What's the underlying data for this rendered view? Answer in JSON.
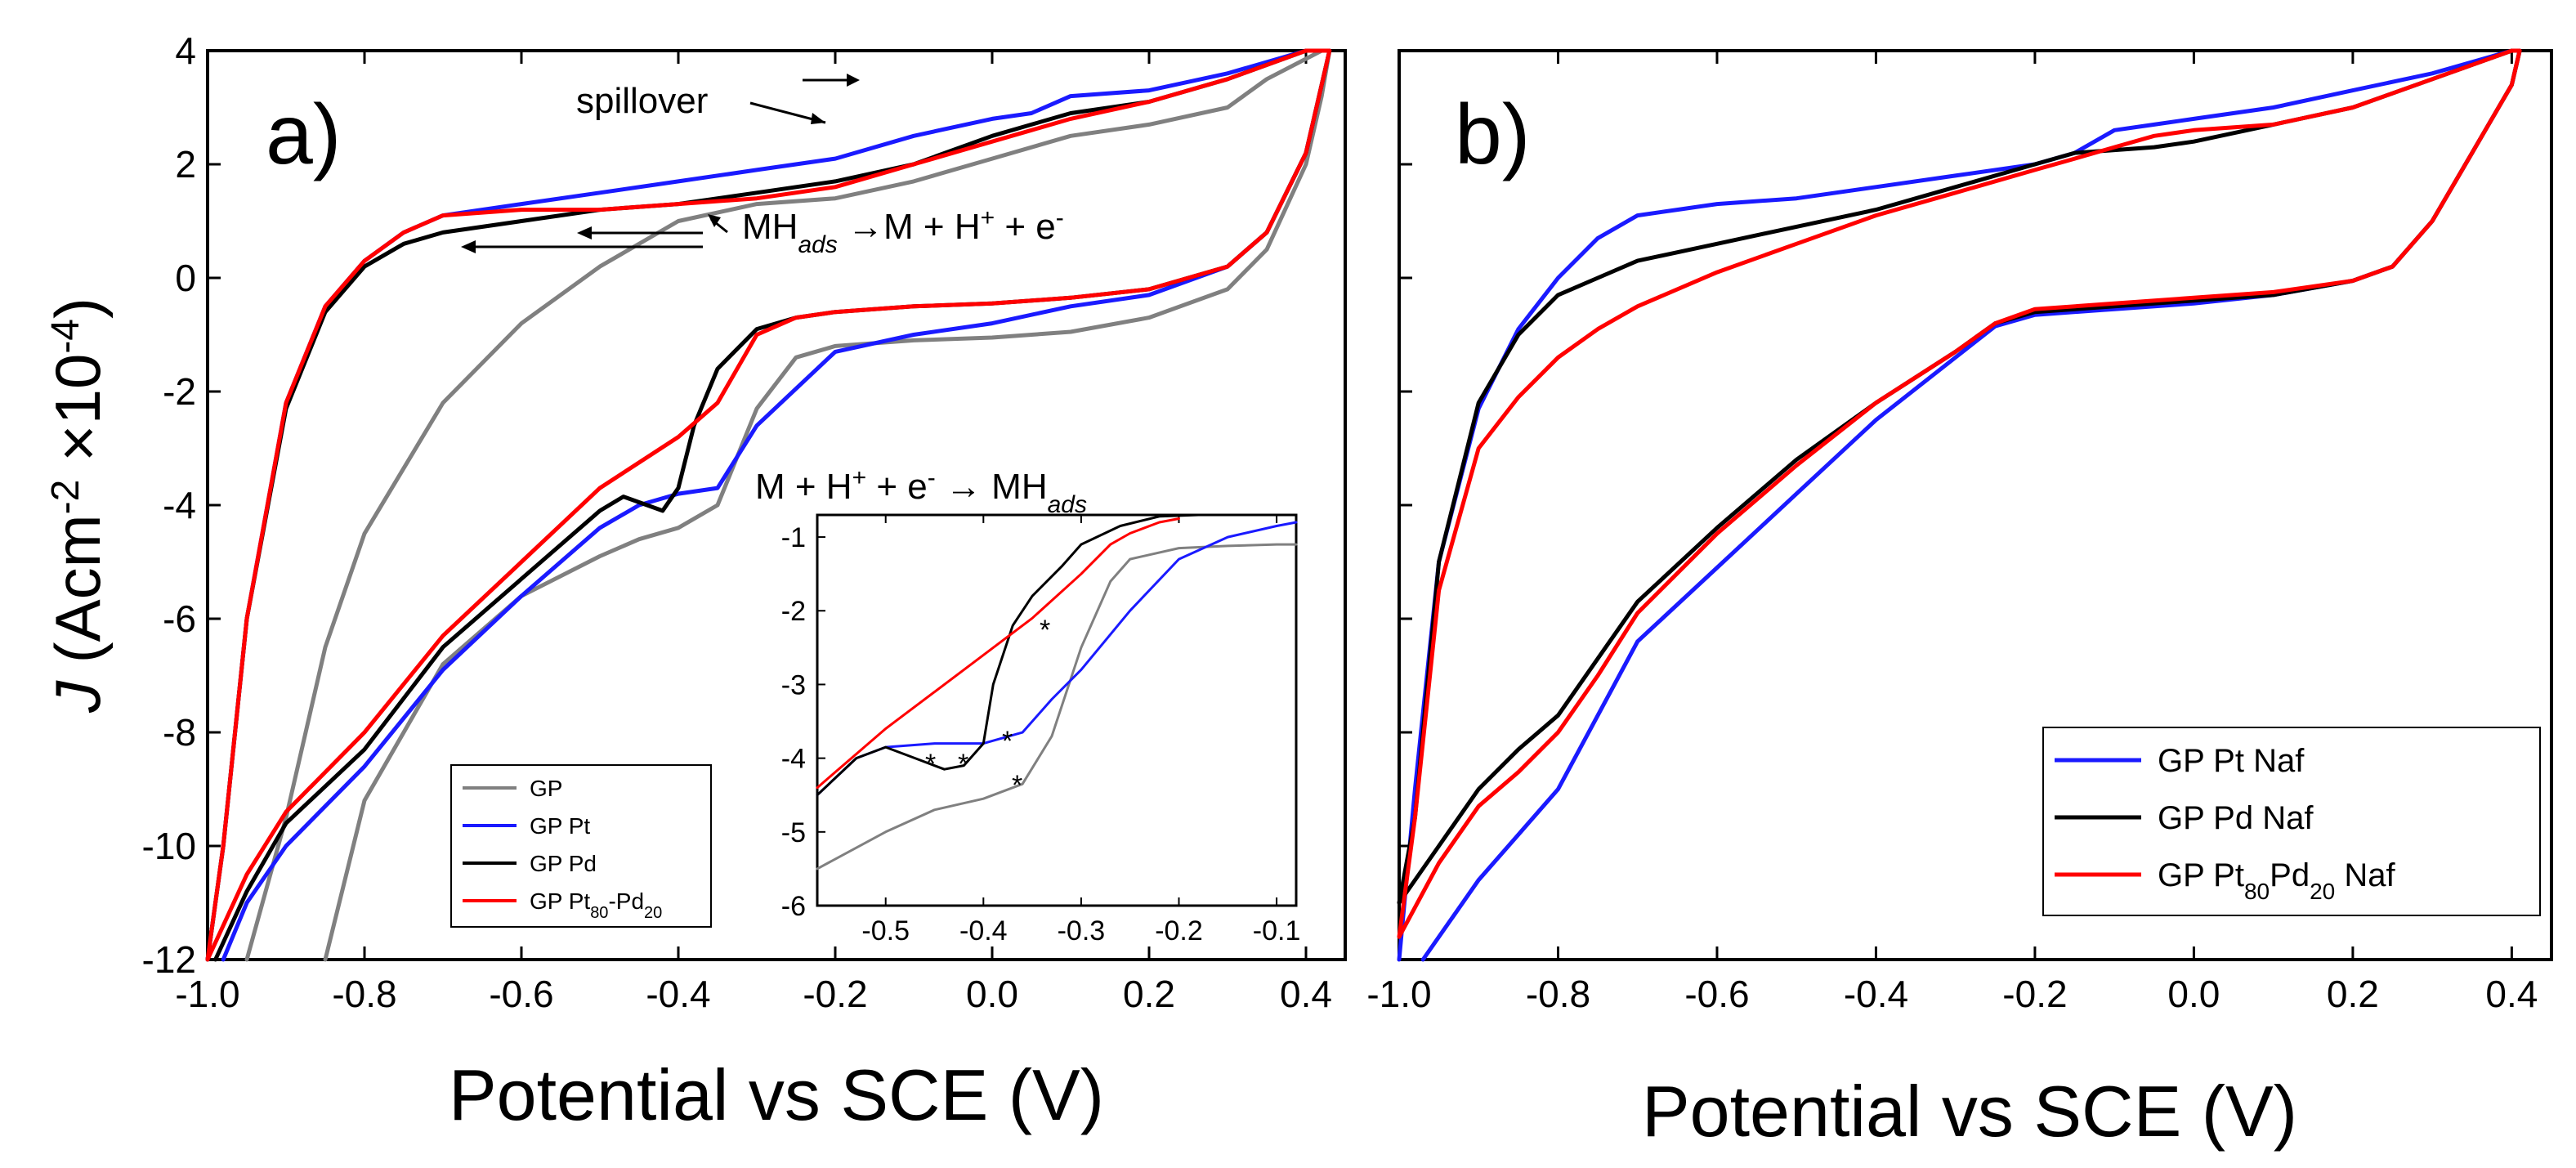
{
  "chart_data": [
    {
      "type": "line",
      "panel_label": "a)",
      "xlabel": "Potential vs SCE (V)",
      "ylabel": {
        "italic": "J",
        "text": " (Acm",
        "sup1": "-2",
        "mid": " ×10",
        "sup2": "-4",
        "end": ")"
      },
      "xlim": [
        -1.0,
        0.45
      ],
      "ylim": [
        -12,
        4
      ],
      "xticks": [
        "-1.0",
        "-0.8",
        "-0.6",
        "-0.4",
        "-0.2",
        "0.0",
        "0.2",
        "0.4"
      ],
      "yticks": [
        "4",
        "2",
        "0",
        "-2",
        "-4",
        "-6",
        "-8",
        "-10",
        "-12"
      ],
      "legend": [
        {
          "name": "GP",
          "color": "#808080"
        },
        {
          "name": "GP Pt",
          "color": "#1a1aff"
        },
        {
          "name": "GP Pd",
          "color": "#000000"
        },
        {
          "name": "GP Pt",
          "sub1": "80",
          "mid": "-Pd",
          "sub2": "20",
          "color": "#ff0000"
        }
      ],
      "annotations": {
        "spillover": "spillover",
        "oxidation": {
          "a": "MH",
          "sub": "ads",
          "b": " →M + H",
          "sup": "+",
          "c": " + e",
          "sup2": "-"
        },
        "reduction": {
          "a": "M + H",
          "sup": "+",
          "b": " + e",
          "sup2": "-",
          "c": " → MH",
          "sub": "ads"
        }
      },
      "series": [
        {
          "name": "GP",
          "color": "#808080",
          "x": [
            -0.85,
            -0.8,
            -0.7,
            -0.6,
            -0.5,
            -0.45,
            -0.4,
            -0.35,
            -0.3,
            -0.25,
            -0.2,
            -0.1,
            0.0,
            0.1,
            0.2,
            0.3,
            0.35,
            0.4,
            0.42,
            0.43,
            0.42,
            0.35,
            0.3,
            0.2,
            0.1,
            0.0,
            -0.1,
            -0.2,
            -0.3,
            -0.4,
            -0.5,
            -0.6,
            -0.7,
            -0.8,
            -0.85,
            -0.9,
            -0.95
          ],
          "y": [
            -12,
            -9.2,
            -6.8,
            -5.6,
            -4.9,
            -4.6,
            -4.4,
            -4.0,
            -2.3,
            -1.4,
            -1.2,
            -1.1,
            -1.05,
            -0.95,
            -0.7,
            -0.2,
            0.5,
            2.0,
            3.2,
            4.0,
            4.0,
            3.5,
            3.0,
            2.7,
            2.5,
            2.1,
            1.7,
            1.4,
            1.3,
            1.0,
            0.2,
            -0.8,
            -2.2,
            -4.5,
            -6.5,
            -9.5,
            -12
          ]
        },
        {
          "name": "GP Pt",
          "color": "#1a1aff",
          "x": [
            -0.98,
            -0.95,
            -0.9,
            -0.8,
            -0.7,
            -0.6,
            -0.5,
            -0.45,
            -0.4,
            -0.35,
            -0.3,
            -0.2,
            -0.1,
            0.0,
            0.1,
            0.2,
            0.3,
            0.35,
            0.4,
            0.42,
            0.43,
            0.4,
            0.3,
            0.2,
            0.1,
            0.05,
            0.0,
            -0.1,
            -0.2,
            -0.3,
            -0.4,
            -0.5,
            -0.6,
            -0.7,
            -0.75,
            -0.8,
            -0.85,
            -0.9,
            -0.95,
            -0.98,
            -1.0
          ],
          "y": [
            -12,
            -11,
            -10,
            -8.6,
            -6.9,
            -5.6,
            -4.4,
            -4.0,
            -3.8,
            -3.7,
            -2.6,
            -1.3,
            -1.0,
            -0.8,
            -0.5,
            -0.3,
            0.2,
            0.8,
            2.2,
            3.4,
            4.0,
            4.0,
            3.6,
            3.3,
            3.2,
            2.9,
            2.8,
            2.5,
            2.1,
            1.9,
            1.7,
            1.5,
            1.3,
            1.1,
            0.8,
            0.3,
            -0.5,
            -2.2,
            -6.0,
            -10.0,
            -12
          ]
        },
        {
          "name": "GP Pd",
          "color": "#000000",
          "x": [
            -0.99,
            -0.95,
            -0.9,
            -0.8,
            -0.7,
            -0.6,
            -0.5,
            -0.47,
            -0.45,
            -0.42,
            -0.4,
            -0.38,
            -0.35,
            -0.3,
            -0.25,
            -0.2,
            -0.1,
            0.0,
            0.1,
            0.2,
            0.3,
            0.35,
            0.4,
            0.42,
            0.43,
            0.4,
            0.3,
            0.2,
            0.1,
            0.05,
            0.0,
            -0.1,
            -0.2,
            -0.3,
            -0.4,
            -0.5,
            -0.6,
            -0.7,
            -0.75,
            -0.8,
            -0.85,
            -0.9,
            -0.95,
            -0.98,
            -1.0
          ],
          "y": [
            -12,
            -10.8,
            -9.6,
            -8.3,
            -6.5,
            -5.3,
            -4.1,
            -3.85,
            -3.95,
            -4.1,
            -3.7,
            -2.6,
            -1.6,
            -0.9,
            -0.7,
            -0.6,
            -0.5,
            -0.45,
            -0.35,
            -0.2,
            0.2,
            0.8,
            2.2,
            3.4,
            4.0,
            4.0,
            3.5,
            3.1,
            2.9,
            2.7,
            2.5,
            2.0,
            1.7,
            1.5,
            1.3,
            1.2,
            1.0,
            0.8,
            0.6,
            0.2,
            -0.6,
            -2.3,
            -6.0,
            -10.0,
            -12
          ]
        },
        {
          "name": "GP Pt80-Pd20",
          "color": "#ff0000",
          "x": [
            -1.0,
            -0.95,
            -0.9,
            -0.8,
            -0.7,
            -0.6,
            -0.5,
            -0.4,
            -0.35,
            -0.3,
            -0.25,
            -0.2,
            -0.1,
            0.0,
            0.1,
            0.2,
            0.3,
            0.35,
            0.4,
            0.42,
            0.43,
            0.4,
            0.3,
            0.2,
            0.1,
            0.05,
            0.0,
            -0.1,
            -0.2,
            -0.3,
            -0.4,
            -0.5,
            -0.6,
            -0.7,
            -0.75,
            -0.8,
            -0.85,
            -0.9,
            -0.95,
            -0.98,
            -1.0
          ],
          "y": [
            -12,
            -10.5,
            -9.4,
            -8.0,
            -6.3,
            -5.0,
            -3.7,
            -2.8,
            -2.2,
            -1.0,
            -0.7,
            -0.6,
            -0.5,
            -0.45,
            -0.35,
            -0.2,
            0.2,
            0.8,
            2.2,
            3.4,
            4.0,
            4.0,
            3.5,
            3.1,
            2.8,
            2.6,
            2.4,
            2.0,
            1.6,
            1.4,
            1.3,
            1.2,
            1.2,
            1.1,
            0.8,
            0.3,
            -0.5,
            -2.2,
            -6.0,
            -10.0,
            -12
          ]
        }
      ],
      "inset": {
        "xlim": [
          -0.57,
          -0.08
        ],
        "ylim": [
          -6,
          -0.7
        ],
        "xticks": [
          "-0.5",
          "-0.4",
          "-0.3",
          "-0.2",
          "-0.1"
        ],
        "yticks": [
          "-1",
          "-2",
          "-3",
          "-4",
          "-5",
          "-6"
        ],
        "markers": [
          "*",
          "*",
          "*",
          "*",
          "*"
        ],
        "series": [
          {
            "name": "GP",
            "color": "#808080",
            "x": [
              -0.57,
              -0.5,
              -0.45,
              -0.4,
              -0.36,
              -0.33,
              -0.3,
              -0.27,
              -0.25,
              -0.2,
              -0.15,
              -0.1,
              -0.08
            ],
            "y": [
              -5.5,
              -5.0,
              -4.7,
              -4.55,
              -4.35,
              -3.7,
              -2.5,
              -1.6,
              -1.3,
              -1.15,
              -1.12,
              -1.1,
              -1.1
            ]
          },
          {
            "name": "GP Pt",
            "color": "#1a1aff",
            "x": [
              -0.57,
              -0.53,
              -0.5,
              -0.45,
              -0.4,
              -0.36,
              -0.33,
              -0.3,
              -0.25,
              -0.2,
              -0.15,
              -0.1,
              -0.08
            ],
            "y": [
              -4.5,
              -4.0,
              -3.85,
              -3.8,
              -3.8,
              -3.65,
              -3.2,
              -2.8,
              -2.0,
              -1.3,
              -1.0,
              -0.85,
              -0.8
            ]
          },
          {
            "name": "GP Pd",
            "color": "#000000",
            "x": [
              -0.57,
              -0.53,
              -0.5,
              -0.47,
              -0.44,
              -0.42,
              -0.4,
              -0.39,
              -0.37,
              -0.35,
              -0.32,
              -0.3,
              -0.26,
              -0.22,
              -0.18,
              -0.1,
              -0.08
            ],
            "y": [
              -4.5,
              -4.0,
              -3.85,
              -4.0,
              -4.15,
              -4.1,
              -3.8,
              -3.0,
              -2.2,
              -1.8,
              -1.4,
              -1.1,
              -0.85,
              -0.72,
              -0.7,
              -0.7,
              -0.7
            ]
          },
          {
            "name": "GP Pt80-Pd20",
            "color": "#ff0000",
            "x": [
              -0.57,
              -0.5,
              -0.45,
              -0.4,
              -0.35,
              -0.3,
              -0.27,
              -0.25,
              -0.22,
              -0.2
            ],
            "y": [
              -4.4,
              -3.6,
              -3.1,
              -2.6,
              -2.1,
              -1.5,
              -1.1,
              -0.95,
              -0.8,
              -0.75
            ]
          }
        ]
      }
    },
    {
      "type": "line",
      "panel_label": "b)",
      "xlabel": "Potential vs SCE (V)",
      "xlim": [
        -1.0,
        0.45
      ],
      "ylim": [
        -12,
        4
      ],
      "xticks": [
        "-1.0",
        "-0.8",
        "-0.6",
        "-0.4",
        "-0.2",
        "0.0",
        "0.2",
        "0.4"
      ],
      "legend": [
        {
          "name": "GP Pt Naf",
          "color": "#1a1aff"
        },
        {
          "name": "GP Pd Naf",
          "color": "#000000"
        },
        {
          "name": "GP Pt",
          "sub1": "80",
          "mid": "Pd",
          "sub2": "20",
          "end": " Naf",
          "color": "#ff0000"
        }
      ],
      "series": [
        {
          "name": "GP Pt Naf",
          "color": "#1a1aff",
          "x": [
            -0.97,
            -0.9,
            -0.85,
            -0.8,
            -0.75,
            -0.7,
            -0.6,
            -0.5,
            -0.4,
            -0.3,
            -0.25,
            -0.2,
            -0.1,
            0.0,
            0.1,
            0.2,
            0.25,
            0.3,
            0.35,
            0.4,
            0.41,
            0.4,
            0.3,
            0.2,
            0.1,
            0.0,
            -0.05,
            -0.1,
            -0.15,
            -0.2,
            -0.3,
            -0.4,
            -0.5,
            -0.6,
            -0.65,
            -0.7,
            -0.75,
            -0.8,
            -0.85,
            -0.9,
            -0.95,
            -0.98,
            -1.0
          ],
          "y": [
            -12,
            -10.6,
            -9.8,
            -9.0,
            -7.7,
            -6.4,
            -5.1,
            -3.8,
            -2.5,
            -1.4,
            -0.85,
            -0.65,
            -0.55,
            -0.45,
            -0.3,
            -0.05,
            0.2,
            1.0,
            2.2,
            3.4,
            4.0,
            4.0,
            3.6,
            3.3,
            3.0,
            2.8,
            2.7,
            2.6,
            2.2,
            2.0,
            1.8,
            1.6,
            1.4,
            1.3,
            1.2,
            1.1,
            0.7,
            0.0,
            -0.9,
            -2.3,
            -5.0,
            -9.0,
            -12
          ]
        },
        {
          "name": "GP Pd Naf",
          "color": "#000000",
          "x": [
            -1.0,
            -0.95,
            -0.9,
            -0.85,
            -0.8,
            -0.75,
            -0.7,
            -0.6,
            -0.5,
            -0.4,
            -0.3,
            -0.25,
            -0.2,
            -0.1,
            0.0,
            0.1,
            0.2,
            0.25,
            0.3,
            0.35,
            0.4,
            0.41,
            0.4,
            0.3,
            0.2,
            0.1,
            0.0,
            -0.05,
            -0.1,
            -0.15,
            -0.2,
            -0.3,
            -0.4,
            -0.5,
            -0.6,
            -0.7,
            -0.75,
            -0.8,
            -0.85,
            -0.9,
            -0.95,
            -0.98,
            -1.0
          ],
          "y": [
            -11,
            -10.0,
            -9.0,
            -8.3,
            -7.7,
            -6.7,
            -5.7,
            -4.4,
            -3.2,
            -2.2,
            -1.3,
            -0.8,
            -0.6,
            -0.5,
            -0.4,
            -0.3,
            -0.05,
            0.2,
            1.0,
            2.2,
            3.4,
            4.0,
            4.0,
            3.5,
            3.0,
            2.7,
            2.4,
            2.3,
            2.25,
            2.2,
            2.0,
            1.6,
            1.2,
            0.9,
            0.6,
            0.3,
            0.0,
            -0.3,
            -1.0,
            -2.2,
            -5.0,
            -9.5,
            -11
          ]
        },
        {
          "name": "GP Pt80Pd20 Naf",
          "color": "#ff0000",
          "x": [
            -1.0,
            -0.95,
            -0.9,
            -0.85,
            -0.8,
            -0.75,
            -0.7,
            -0.6,
            -0.5,
            -0.4,
            -0.3,
            -0.25,
            -0.2,
            -0.1,
            0.0,
            0.1,
            0.2,
            0.25,
            0.3,
            0.35,
            0.4,
            0.41,
            0.4,
            0.3,
            0.2,
            0.1,
            0.0,
            -0.05,
            -0.1,
            -0.15,
            -0.2,
            -0.3,
            -0.4,
            -0.5,
            -0.6,
            -0.7,
            -0.75,
            -0.8,
            -0.85,
            -0.9,
            -0.95,
            -0.98,
            -1.0
          ],
          "y": [
            -11.6,
            -10.3,
            -9.3,
            -8.7,
            -8.0,
            -7.0,
            -5.9,
            -4.5,
            -3.3,
            -2.2,
            -1.3,
            -0.8,
            -0.55,
            -0.45,
            -0.35,
            -0.25,
            -0.05,
            0.2,
            1.0,
            2.2,
            3.4,
            4.0,
            4.0,
            3.5,
            3.0,
            2.7,
            2.6,
            2.5,
            2.3,
            2.1,
            1.9,
            1.5,
            1.1,
            0.6,
            0.1,
            -0.5,
            -0.9,
            -1.4,
            -2.1,
            -3.0,
            -5.5,
            -9.5,
            -11.6
          ]
        }
      ]
    }
  ]
}
